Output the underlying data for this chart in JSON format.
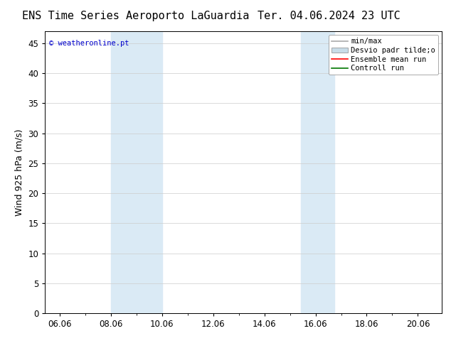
{
  "title_left": "ENS Time Series Aeroporto LaGuardia",
  "title_right": "Ter. 04.06.2024 23 UTC",
  "ylabel": "Wind 925 hPa (m/s)",
  "watermark": "© weatheronline.pt",
  "watermark_color": "#0000cc",
  "xlim_left": 5.5,
  "xlim_right": 21.0,
  "ylim_bottom": 0,
  "ylim_top": 47,
  "xticks": [
    6.06,
    8.06,
    10.06,
    12.06,
    14.06,
    16.06,
    18.06,
    20.06
  ],
  "xtick_labels": [
    "06.06",
    "08.06",
    "10.06",
    "12.06",
    "14.06",
    "16.06",
    "18.06",
    "20.06"
  ],
  "yticks": [
    0,
    5,
    10,
    15,
    20,
    25,
    30,
    35,
    40,
    45
  ],
  "shaded_regions": [
    {
      "xmin": 8.06,
      "xmax": 10.06
    },
    {
      "xmin": 15.5,
      "xmax": 16.8
    }
  ],
  "shaded_color": "#daeaf5",
  "background_color": "#ffffff",
  "legend_items": [
    {
      "label": "min/max",
      "color": "#aaaaaa",
      "lw": 1.2
    },
    {
      "label": "Desvio padr tilde;o",
      "color": "#c8dce8",
      "patch": true
    },
    {
      "label": "Ensemble mean run",
      "color": "#ff0000",
      "lw": 1.2
    },
    {
      "label": "Controll run",
      "color": "#007700",
      "lw": 1.2
    }
  ],
  "title_fontsize": 11,
  "axis_label_fontsize": 9,
  "tick_fontsize": 8.5,
  "legend_fontsize": 7.5
}
